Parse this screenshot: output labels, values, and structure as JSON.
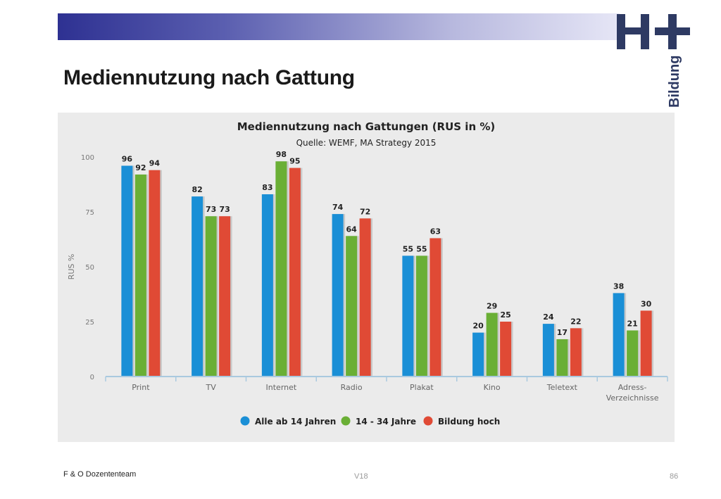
{
  "page": {
    "title": "Mediennutzung nach Gattung",
    "footer_left": "F & O Dozententeam",
    "footer_center": "V18",
    "page_number": "86"
  },
  "logo": {
    "mark": "H+",
    "text": "Bildung",
    "color": "#2e3a63"
  },
  "colors": {
    "band_start": "#2e3192",
    "band_end": "#e6e6f6"
  },
  "chart_data": {
    "type": "bar",
    "title": "Mediennutzung nach Gattungen (RUS in %)",
    "subtitle": "Quelle: WEMF, MA Strategy 2015",
    "ylabel": "RUS %",
    "ylim": [
      0,
      100
    ],
    "yticks": [
      0,
      25,
      50,
      75,
      100
    ],
    "grid": false,
    "legend_position": "bottom",
    "categories": [
      [
        "Print"
      ],
      [
        "TV"
      ],
      [
        "Internet"
      ],
      [
        "Radio"
      ],
      [
        "Plakat"
      ],
      [
        "Kino"
      ],
      [
        "Teletext"
      ],
      [
        "Adress-",
        "Verzeichnisse"
      ]
    ],
    "series": [
      {
        "name": "Alle ab 14 Jahren",
        "color": "#1a8fd6",
        "values": [
          96,
          82,
          83,
          74,
          55,
          20,
          24,
          38
        ]
      },
      {
        "name": "14 - 34 Jahre",
        "color": "#6aaf35",
        "values": [
          92,
          73,
          98,
          64,
          55,
          29,
          17,
          21
        ]
      },
      {
        "name": "Bildung hoch",
        "color": "#e04a35",
        "values": [
          94,
          73,
          95,
          72,
          63,
          25,
          22,
          30
        ]
      }
    ]
  }
}
